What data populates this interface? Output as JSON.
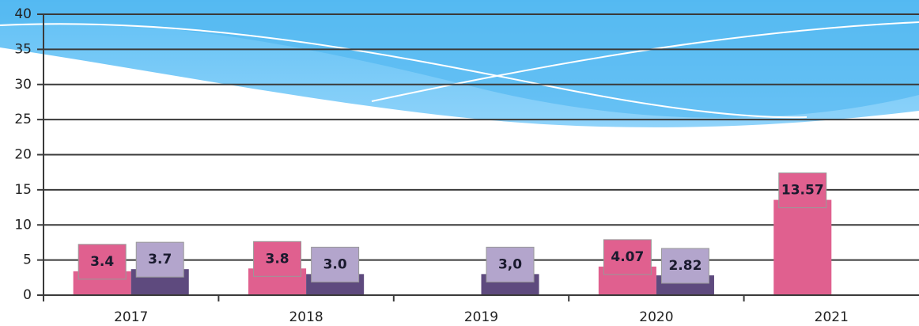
{
  "chart_data": {
    "type": "bar",
    "categories": [
      "2017",
      "2018",
      "2019",
      "2020",
      "2021"
    ],
    "series": [
      {
        "color": "#e0608f",
        "label_color": "#e0608f",
        "values": [
          3.4,
          3.8,
          null,
          4.07,
          13.57
        ],
        "value_labels": [
          "3.4",
          "3.8",
          null,
          "4.07",
          "13.57"
        ]
      },
      {
        "color": "#5e4a7e",
        "label_color": "#b3a5cc",
        "values": [
          3.7,
          3.0,
          3.0,
          2.82,
          null
        ],
        "value_labels": [
          "3.7",
          "3.0",
          "3,0",
          "2.82",
          null
        ]
      }
    ],
    "ylim": [
      0,
      40
    ],
    "yticks": [
      0,
      5,
      10,
      15,
      20,
      25,
      30,
      35,
      40
    ],
    "grid": true
  }
}
